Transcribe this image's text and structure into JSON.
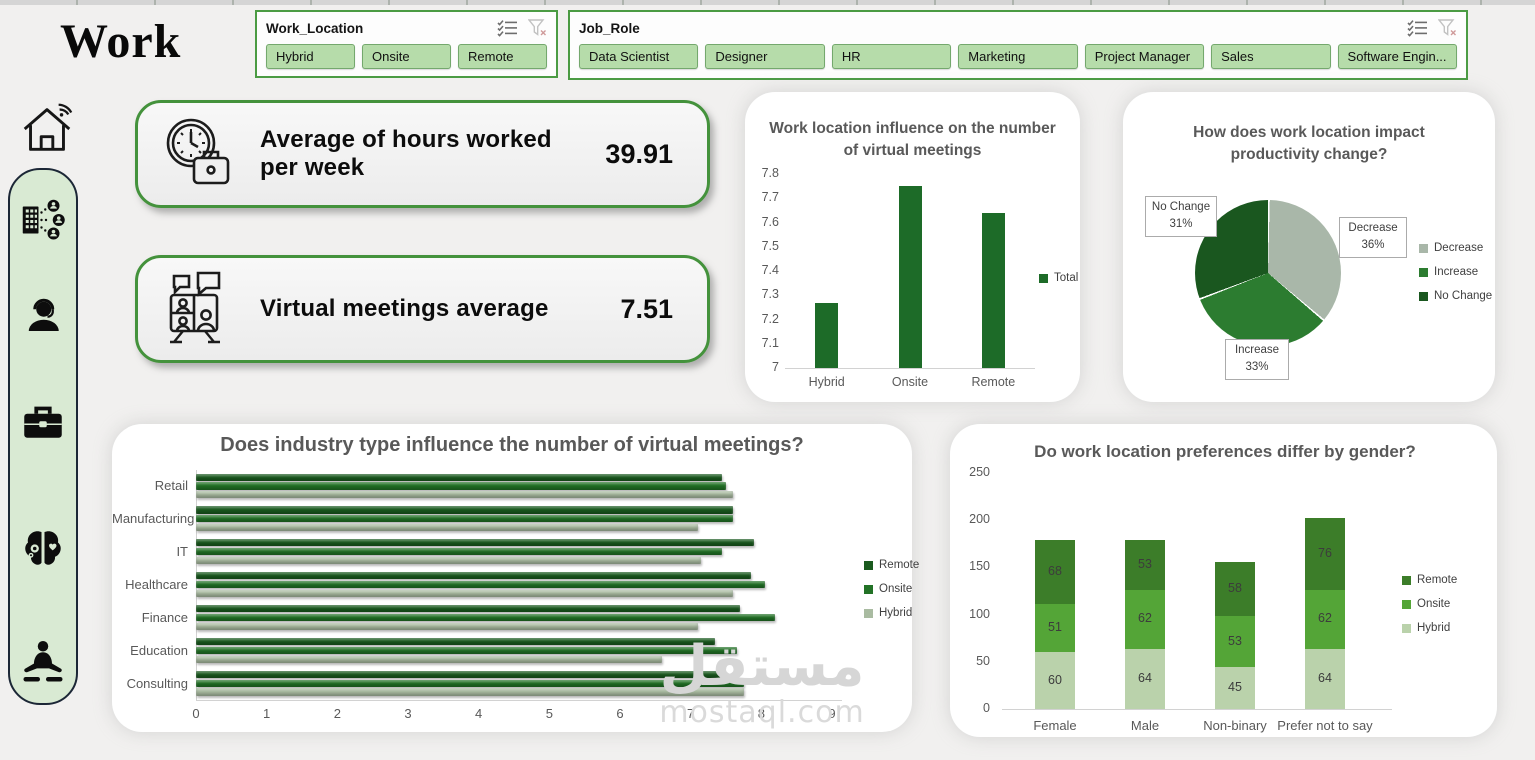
{
  "title": "Work",
  "slicers": {
    "work_location": {
      "title": "Work_Location",
      "items": [
        "Hybrid",
        "Onsite",
        "Remote"
      ]
    },
    "job_role": {
      "title": "Job_Role",
      "items": [
        "Data Scientist",
        "Designer",
        "HR",
        "Marketing",
        "Project Manager",
        "Sales",
        "Software Engin..."
      ]
    }
  },
  "slicer_icons": [
    "multiselect-icon",
    "clear-filter-icon"
  ],
  "sidebar": {
    "icons": [
      "smart-home-icon",
      "organization-network-icon",
      "support-agent-icon",
      "briefcase-icon",
      "mental-health-icon",
      "meditation-icon"
    ]
  },
  "kpis": [
    {
      "icon": "clock-briefcase-icon",
      "label": "Average of hours worked per week",
      "value": "39.91"
    },
    {
      "icon": "virtual-meeting-icon",
      "label": "Virtual meetings average",
      "value": "7.51"
    }
  ],
  "chart_data": [
    {
      "type": "bar",
      "title": "Work location influence on the number of virtual meetings",
      "categories": [
        "Hybrid",
        "Onsite",
        "Remote"
      ],
      "values": [
        7.27,
        7.75,
        7.64
      ],
      "ylim": [
        7,
        7.8
      ],
      "ytick_step": 0.1,
      "legend_label": "Total",
      "bar_color": "#1d6b28"
    },
    {
      "type": "pie",
      "title": "How does work location impact productivity change?",
      "slices": [
        {
          "label": "Decrease",
          "pct": 36,
          "color": "#a9b7a9"
        },
        {
          "label": "Increase",
          "pct": 33,
          "color": "#2c7c30"
        },
        {
          "label": "No Change",
          "pct": 31,
          "color": "#1a571f"
        }
      ],
      "legend_order": [
        "Decrease",
        "Increase",
        "No Change"
      ]
    },
    {
      "type": "bar-horizontal",
      "title": "Does industry type influence the number of virtual meetings?",
      "categories": [
        "Retail",
        "Manufacturing",
        "IT",
        "Healthcare",
        "Finance",
        "Education",
        "Consulting"
      ],
      "series": [
        {
          "name": "Remote",
          "color": "#1a5a1e",
          "values": [
            7.45,
            7.6,
            7.9,
            7.85,
            7.7,
            7.35,
            7.5
          ]
        },
        {
          "name": "Onsite",
          "color": "#227226",
          "values": [
            7.5,
            7.6,
            7.45,
            8.05,
            8.2,
            7.65,
            7.75
          ]
        },
        {
          "name": "Hybrid",
          "color": "#a9bba1",
          "values": [
            7.6,
            7.1,
            7.15,
            7.6,
            7.1,
            6.6,
            7.75
          ]
        }
      ],
      "xlim": [
        0,
        9
      ],
      "xticks": [
        0,
        1,
        2,
        3,
        4,
        5,
        6,
        7,
        8,
        9
      ]
    },
    {
      "type": "stacked-bar",
      "title": "Do work location preferences differ by gender?",
      "categories": [
        "Female",
        "Male",
        "Non-binary",
        "Prefer not to say"
      ],
      "series": [
        {
          "name": "Hybrid",
          "color": "#bad2ab",
          "values": [
            60,
            64,
            45,
            64
          ]
        },
        {
          "name": "Onsite",
          "color": "#54a537",
          "values": [
            51,
            62,
            53,
            62
          ]
        },
        {
          "name": "Remote",
          "color": "#3c7d29",
          "values": [
            68,
            53,
            58,
            76
          ]
        }
      ],
      "ylim": [
        0,
        250
      ],
      "yticks": [
        0,
        50,
        100,
        150,
        200,
        250
      ]
    }
  ],
  "watermark": {
    "arabic": "مستقل",
    "latin": "mostaql.com"
  }
}
